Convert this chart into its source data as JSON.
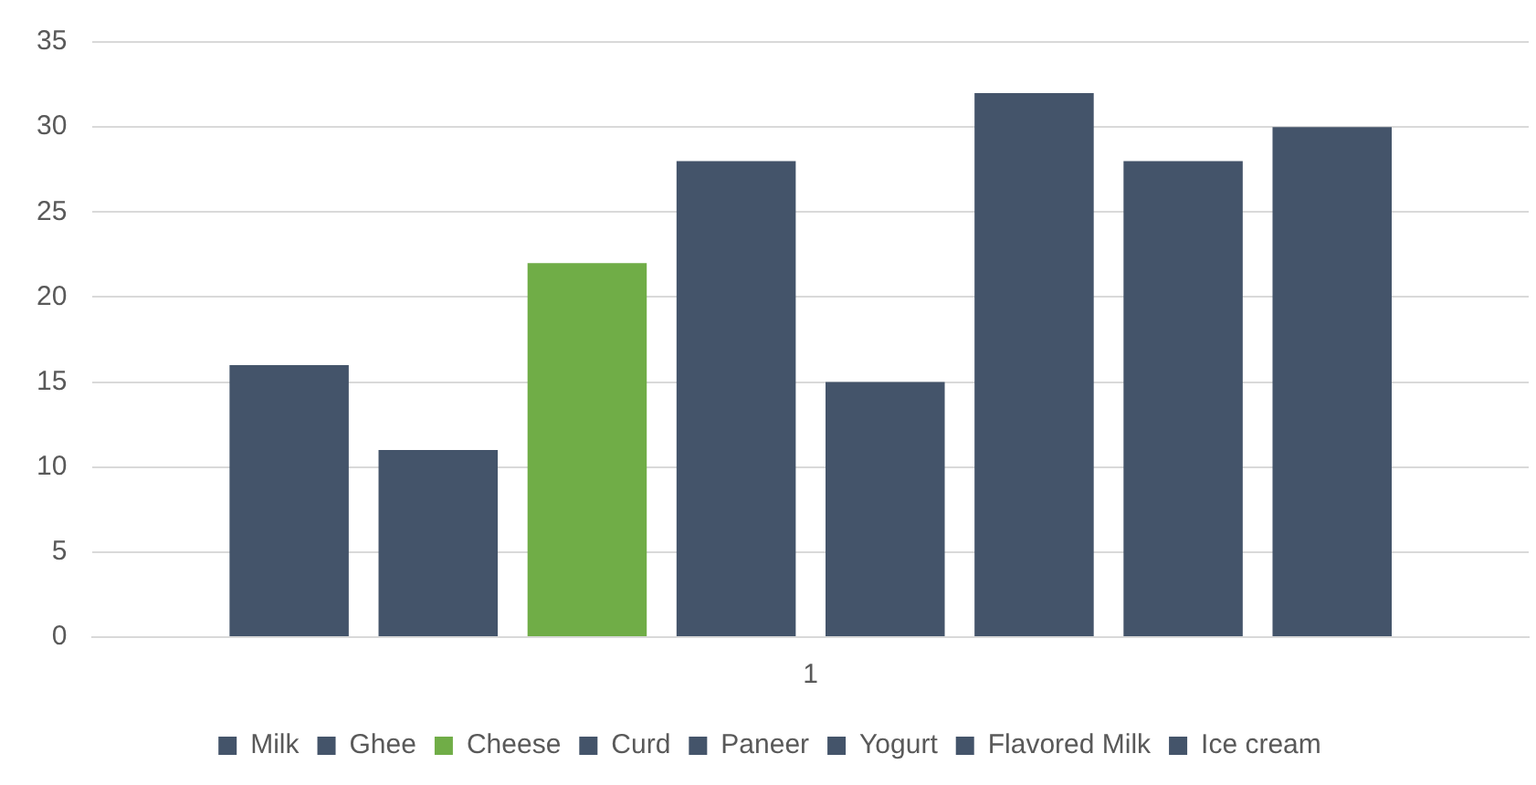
{
  "chart_data": {
    "type": "bar",
    "categories": [
      "1"
    ],
    "series": [
      {
        "name": "Milk",
        "color": "#44546a",
        "values": [
          16
        ]
      },
      {
        "name": "Ghee",
        "color": "#44546a",
        "values": [
          11
        ]
      },
      {
        "name": "Cheese",
        "color": "#70ad47",
        "values": [
          22
        ]
      },
      {
        "name": "Curd",
        "color": "#44546a",
        "values": [
          28
        ]
      },
      {
        "name": "Paneer",
        "color": "#44546a",
        "values": [
          15
        ]
      },
      {
        "name": "Yogurt",
        "color": "#44546a",
        "values": [
          32
        ]
      },
      {
        "name": "Flavored Milk",
        "color": "#44546a",
        "values": [
          28
        ]
      },
      {
        "name": "Ice cream",
        "color": "#44546a",
        "values": [
          30
        ]
      }
    ],
    "ylim": [
      0,
      35
    ],
    "yticks": [
      0,
      5,
      10,
      15,
      20,
      25,
      30,
      35
    ],
    "grid": "y",
    "legend": "bottom"
  }
}
